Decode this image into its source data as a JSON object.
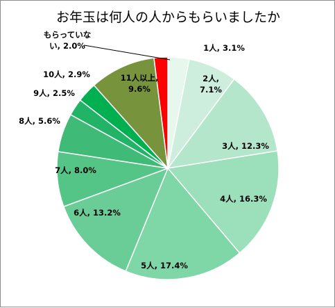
{
  "chart_data": {
    "type": "pie",
    "title": "お年玉は何人の人からもらいましたか",
    "start_angle_deg": 0,
    "direction": "clockwise",
    "legend": "none",
    "slices": [
      {
        "label": "1人",
        "value": 3.1,
        "color": "#e6f7ee",
        "label_lines": [
          "1人, 3.1%"
        ]
      },
      {
        "label": "2人",
        "value": 7.1,
        "color": "#cdeedd",
        "label_lines": [
          "2人,",
          "7.1%"
        ]
      },
      {
        "label": "3人",
        "value": 12.3,
        "color": "#b4e6cc",
        "label_lines": [
          "3人, 12.3%"
        ]
      },
      {
        "label": "4人",
        "value": 16.3,
        "color": "#9cdfbb",
        "label_lines": [
          "4人, 16.3%"
        ]
      },
      {
        "label": "5人",
        "value": 17.4,
        "color": "#7fd6a6",
        "label_lines": [
          "5人, 17.4%"
        ]
      },
      {
        "label": "6人",
        "value": 13.2,
        "color": "#6acd97",
        "label_lines": [
          "6人, 13.2%"
        ]
      },
      {
        "label": "7人",
        "value": 8.0,
        "color": "#55c487",
        "label_lines": [
          "7人, 8.0%"
        ]
      },
      {
        "label": "8人",
        "value": 5.6,
        "color": "#40bb77",
        "label_lines": [
          "8人, 5.6%"
        ]
      },
      {
        "label": "9人",
        "value": 2.5,
        "color": "#22b466",
        "label_lines": [
          "9人, 2.5%"
        ]
      },
      {
        "label": "10人",
        "value": 2.9,
        "color": "#00b050",
        "label_lines": [
          "10人, 2.9%"
        ]
      },
      {
        "label": "11人以上",
        "value": 9.6,
        "color": "#77933c",
        "label_lines": [
          "11人以上,",
          "9.6%"
        ]
      },
      {
        "label": "もらっていない",
        "value": 2.0,
        "color": "#ff0000",
        "label_lines": [
          "もらっていな",
          "い, 2.0%"
        ]
      }
    ]
  }
}
